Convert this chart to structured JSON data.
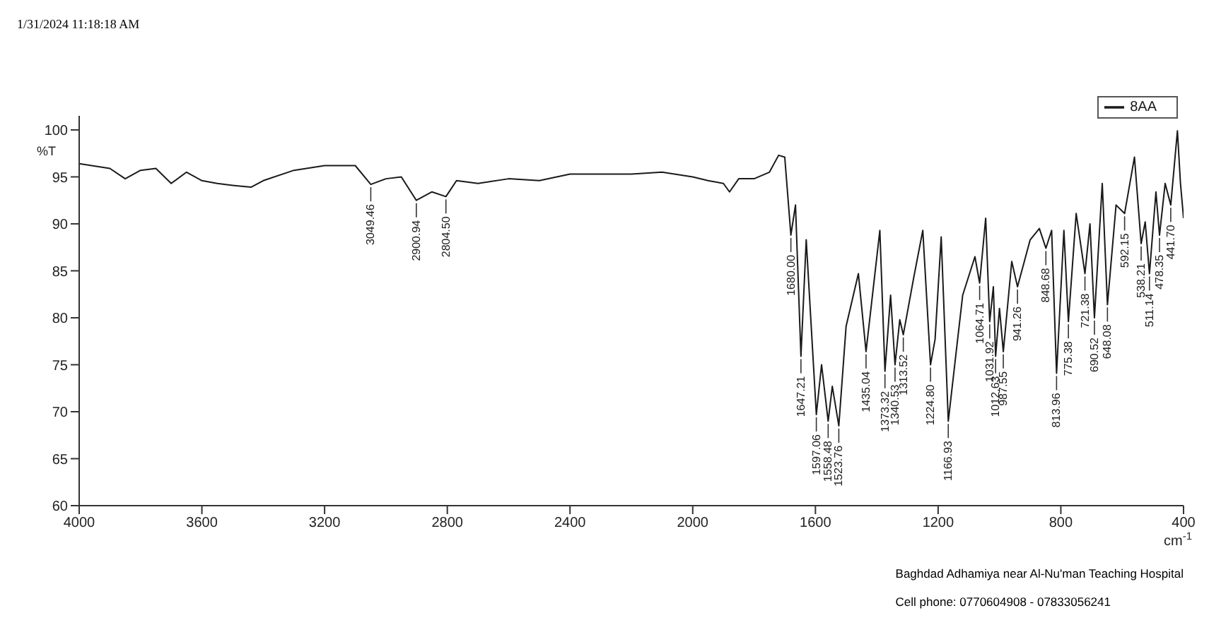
{
  "chart_data": {
    "type": "line",
    "xlabel": "cm$^{-1}$",
    "ylabel": "%T",
    "xlim": [
      4000,
      400
    ],
    "xticks": [
      4000,
      3600,
      3200,
      2800,
      2400,
      2000,
      1600,
      1200,
      800,
      400
    ],
    "ylim": [
      60,
      101.5
    ],
    "yticks": [
      60,
      65,
      70,
      75,
      80,
      85,
      90,
      95,
      100
    ],
    "grid": false,
    "legend": "top right",
    "marker": "none",
    "line_style": "solid",
    "x": [
      4000,
      3900,
      3850,
      3800,
      3750,
      3700,
      3650,
      3600,
      3550,
      3500,
      3440,
      3400,
      3300,
      3200,
      3100,
      3049.46,
      3000,
      2950,
      2900.94,
      2850,
      2804.5,
      2770,
      2700,
      2600,
      2500,
      2400,
      2200,
      2100,
      2000,
      1950,
      1900,
      1880,
      1850,
      1800,
      1750,
      1720,
      1700,
      1680,
      1665,
      1647.21,
      1630,
      1597.06,
      1580,
      1558.48,
      1545,
      1523.76,
      1500,
      1460,
      1435.04,
      1390,
      1373.32,
      1355,
      1340.53,
      1325,
      1313.52,
      1280,
      1250,
      1224.8,
      1210,
      1190,
      1166.93,
      1120,
      1080,
      1064.71,
      1045,
      1031.92,
      1020,
      1012.63,
      1000,
      987.55,
      960,
      941.26,
      900,
      870,
      848.68,
      830,
      813.96,
      790,
      775.38,
      750,
      721.38,
      705,
      690.52,
      665,
      648.08,
      620,
      592.15,
      560,
      538.21,
      525,
      511.14,
      490,
      478.35,
      460,
      441.7,
      420,
      410,
      400
    ],
    "series": [
      {
        "name": "8AA",
        "color": "#1a1a1a",
        "values": [
          96.4,
          95.9,
          94.8,
          95.7,
          95.9,
          94.3,
          95.5,
          94.6,
          94.3,
          94.1,
          93.9,
          94.6,
          95.7,
          96.2,
          96.2,
          94.2,
          94.8,
          95.0,
          92.5,
          93.4,
          92.9,
          94.6,
          94.3,
          94.8,
          94.6,
          95.3,
          95.3,
          95.5,
          95.0,
          94.6,
          94.3,
          93.4,
          94.8,
          94.8,
          95.5,
          97.3,
          97.1,
          88.8,
          92.0,
          75.9,
          88.3,
          69.7,
          75.0,
          69.0,
          72.7,
          68.5,
          79.1,
          84.7,
          76.4,
          89.3,
          74.3,
          82.4,
          75.0,
          79.8,
          78.2,
          84.2,
          89.3,
          75.0,
          77.7,
          88.6,
          69.0,
          82.4,
          86.5,
          83.7,
          90.6,
          79.6,
          83.3,
          75.9,
          81.0,
          76.4,
          86.0,
          83.3,
          88.3,
          89.5,
          87.4,
          89.3,
          74.1,
          89.3,
          79.6,
          91.1,
          84.7,
          90.0,
          80.0,
          94.3,
          81.4,
          92.0,
          91.1,
          97.1,
          87.9,
          90.2,
          84.7,
          93.4,
          88.8,
          94.3,
          92.0,
          99.9,
          94.3,
          90.6
        ]
      }
    ],
    "annotations": [
      "1/31/2024 11:18:18 AM",
      "Baghdad Adhamiya near Al-Nu'man Teaching Hospital",
      "Cell phone: 0770604908 - 07833056241",
      {
        "text": "3049.46",
        "x": 3049.46,
        "y": 94.2
      },
      {
        "text": "2900.94",
        "x": 2900.94,
        "y": 92.5
      },
      {
        "text": "2804.50",
        "x": 2804.5,
        "y": 92.9
      },
      {
        "text": "1680.00",
        "x": 1680,
        "y": 88.8
      },
      {
        "text": "1647.21",
        "x": 1647.21,
        "y": 75.9
      },
      {
        "text": "1597.06",
        "x": 1597.06,
        "y": 69.7
      },
      {
        "text": "1558.48",
        "x": 1558.48,
        "y": 69.0
      },
      {
        "text": "1523.76",
        "x": 1523.76,
        "y": 68.5
      },
      {
        "text": "1435.04",
        "x": 1435.04,
        "y": 76.4
      },
      {
        "text": "1373.32",
        "x": 1373.32,
        "y": 74.3
      },
      {
        "text": "1340.53",
        "x": 1340.53,
        "y": 75.0
      },
      {
        "text": "1313.52",
        "x": 1313.52,
        "y": 78.2
      },
      {
        "text": "1224.80",
        "x": 1224.8,
        "y": 75.0
      },
      {
        "text": "1166.93",
        "x": 1166.93,
        "y": 69.0
      },
      {
        "text": "1064.71",
        "x": 1064.71,
        "y": 83.7
      },
      {
        "text": "1031.92",
        "x": 1031.92,
        "y": 79.6
      },
      {
        "text": "1012.63",
        "x": 1012.63,
        "y": 75.9
      },
      {
        "text": "987.55",
        "x": 987.55,
        "y": 76.4
      },
      {
        "text": "941.26",
        "x": 941.26,
        "y": 83.3
      },
      {
        "text": "848.68",
        "x": 848.68,
        "y": 87.4
      },
      {
        "text": "813.96",
        "x": 813.96,
        "y": 74.1
      },
      {
        "text": "775.38",
        "x": 775.38,
        "y": 79.6
      },
      {
        "text": "721.38",
        "x": 721.38,
        "y": 84.7
      },
      {
        "text": "690.52",
        "x": 690.52,
        "y": 80.0
      },
      {
        "text": "648.08",
        "x": 648.08,
        "y": 81.4
      },
      {
        "text": "592.15",
        "x": 592.15,
        "y": 91.1
      },
      {
        "text": "538.21",
        "x": 538.21,
        "y": 87.9
      },
      {
        "text": "511.14",
        "x": 511.14,
        "y": 84.7
      },
      {
        "text": "478.35",
        "x": 478.35,
        "y": 88.8
      },
      {
        "text": "441.70",
        "x": 441.7,
        "y": 92.0
      }
    ]
  }
}
